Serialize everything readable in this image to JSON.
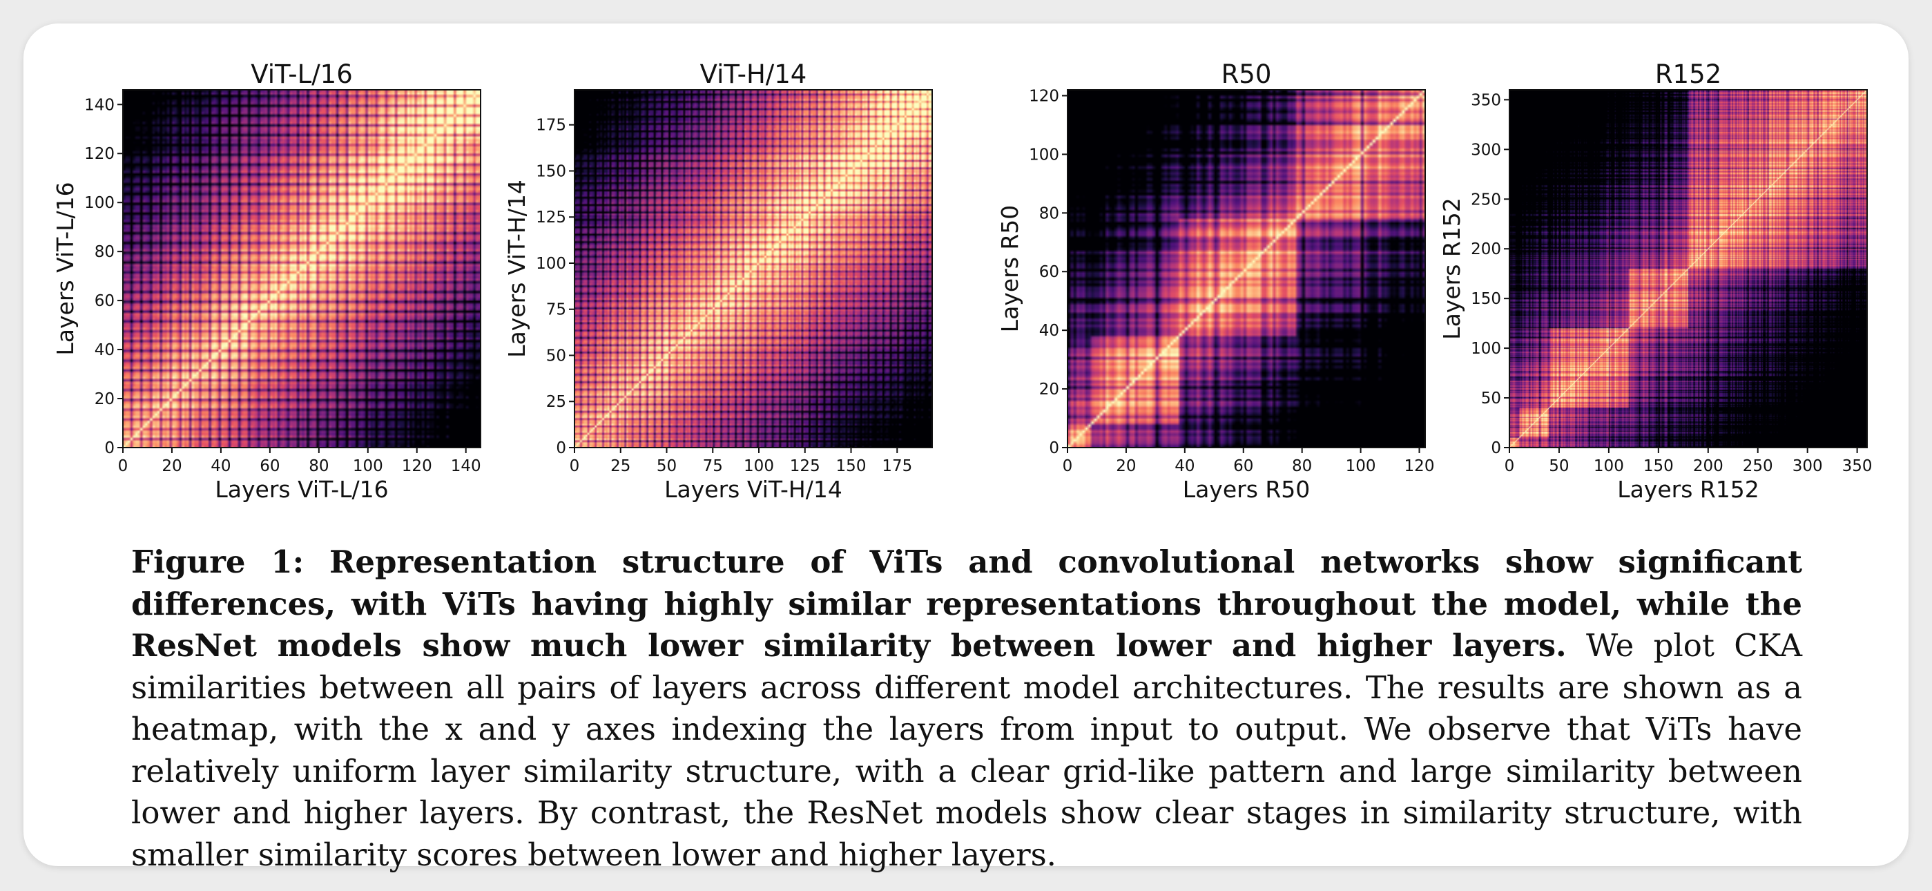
{
  "chart_data": [
    {
      "type": "heatmap",
      "title": "ViT-L/16",
      "xlabel": "Layers ViT-L/16",
      "ylabel": "Layers ViT-L/16",
      "n_layers": 146,
      "xlim": [
        0,
        146
      ],
      "ylim": [
        0,
        146
      ],
      "xticks": [
        0,
        20,
        40,
        60,
        80,
        100,
        120,
        140
      ],
      "yticks": [
        0,
        20,
        40,
        60,
        80,
        100,
        120,
        140
      ],
      "grid_period": 4,
      "stage_boundaries": [],
      "pattern": "vit",
      "colormap": "magma"
    },
    {
      "type": "heatmap",
      "title": "ViT-H/14",
      "xlabel": "Layers ViT-H/14",
      "ylabel": "Layers ViT-H/14",
      "n_layers": 194,
      "xlim": [
        0,
        194
      ],
      "ylim": [
        0,
        194
      ],
      "xticks": [
        0,
        25,
        50,
        75,
        100,
        125,
        150,
        175
      ],
      "yticks": [
        0,
        25,
        50,
        75,
        100,
        125,
        150,
        175
      ],
      "grid_period": 4,
      "stage_boundaries": [],
      "pattern": "vit",
      "colormap": "magma"
    },
    {
      "type": "heatmap",
      "title": "R50",
      "xlabel": "Layers R50",
      "ylabel": "Layers R50",
      "n_layers": 122,
      "xlim": [
        0,
        122
      ],
      "ylim": [
        0,
        122
      ],
      "xticks": [
        0,
        20,
        40,
        60,
        80,
        100,
        120
      ],
      "yticks": [
        0,
        20,
        40,
        60,
        80,
        100,
        120
      ],
      "grid_period": 10,
      "stage_boundaries": [
        8,
        38,
        78
      ],
      "pattern": "resnet",
      "colormap": "magma"
    },
    {
      "type": "heatmap",
      "title": "R152",
      "xlabel": "Layers R152",
      "ylabel": "Layers R152",
      "n_layers": 360,
      "xlim": [
        0,
        360
      ],
      "ylim": [
        0,
        360
      ],
      "xticks": [
        0,
        50,
        100,
        150,
        200,
        250,
        300,
        350
      ],
      "yticks": [
        0,
        50,
        100,
        150,
        200,
        250,
        300,
        350
      ],
      "grid_period": 10,
      "stage_boundaries": [
        10,
        40,
        120,
        180
      ],
      "pattern": "resnet",
      "colormap": "magma"
    }
  ],
  "caption": {
    "bold": "Figure 1: Representation structure of ViTs and convolutional networks show significant differences, with ViTs having highly similar representations throughout the model, while the ResNet models show much lower similarity between lower and higher layers.",
    "text": " We plot CKA similarities between all pairs of layers across different model architectures. The results are shown as a heatmap, with the x and y axes indexing the layers from input to output. We observe that ViTs have relatively uniform layer similarity structure, with a clear grid-like pattern and large similarity between lower and higher layers. By contrast, the ResNet models show clear stages in similarity structure, with smaller similarity scores between lower and higher layers."
  }
}
